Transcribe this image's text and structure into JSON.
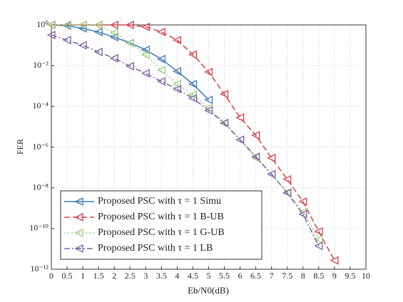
{
  "chart_data": {
    "type": "line",
    "y_label": "FER",
    "x_label": "Eb/N0(dB)",
    "log_y": true,
    "grid": true,
    "legend_position": "lower-left",
    "xlim": [
      0,
      10
    ],
    "xticks": [
      0,
      0.5,
      1,
      1.5,
      2,
      2.5,
      3,
      3.5,
      4,
      4.5,
      5,
      5.5,
      6,
      6.5,
      7,
      7.5,
      8,
      8.5,
      9,
      9.5,
      10
    ],
    "ylim": [
      1e-12,
      1
    ],
    "yticks": [
      {
        "value": 1,
        "label": "10⁰"
      },
      {
        "value": 0.01,
        "label": "10⁻²"
      },
      {
        "value": 0.0001,
        "label": "10⁻⁴"
      },
      {
        "value": 1e-06,
        "label": "10⁻⁶"
      },
      {
        "value": 1e-08,
        "label": "10⁻⁸"
      },
      {
        "value": 1e-10,
        "label": "10⁻¹⁰"
      },
      {
        "value": 1e-12,
        "label": "10⁻¹²"
      }
    ],
    "series": [
      {
        "name": "Proposed PSC with τ = 1 Simu",
        "color": "#3a78b5",
        "linestyle": "solid",
        "x": [
          0,
          0.5,
          1,
          1.5,
          2,
          2.5,
          3,
          3.5,
          4,
          4.5,
          5
        ],
        "values": [
          1,
          0.92,
          0.67,
          0.45,
          0.25,
          0.13,
          0.06,
          0.021,
          0.0053,
          0.00125,
          0.00021
        ]
      },
      {
        "name": "Proposed PSC with τ = 1 B-UB",
        "color": "#d7404a",
        "linestyle": "dashed",
        "x": [
          0,
          0.5,
          1,
          1.5,
          2,
          2.5,
          3,
          3.5,
          4,
          4.5,
          5,
          5.5,
          6,
          6.5,
          7,
          7.5,
          8,
          8.5,
          9
        ],
        "values": [
          1,
          1,
          1,
          1,
          1,
          1,
          0.8,
          0.45,
          0.18,
          0.035,
          0.0049,
          0.0004,
          2.8e-05,
          3.8e-06,
          2.9e-07,
          2.6e-08,
          2.1e-09,
          7.2e-11,
          2.7e-12
        ]
      },
      {
        "name": "Proposed PSC with τ = 1 G-UB",
        "color": "#9ad07a",
        "linestyle": "dotted",
        "x": [
          0,
          0.5,
          1,
          1.5,
          2,
          2.5,
          3,
          3.5,
          4,
          4.5,
          5,
          5.5,
          6,
          6.5,
          7,
          7.5,
          8,
          8.5
        ],
        "values": [
          1,
          1,
          1,
          1,
          0.41,
          0.13,
          0.034,
          0.006,
          0.00125,
          0.00037,
          8.2e-05,
          1.6e-05,
          2.3e-06,
          2.9e-07,
          4.7e-08,
          6e-09,
          6.5e-10,
          3e-11
        ]
      },
      {
        "name": "Proposed PSC with τ = 1 LB",
        "color": "#7b61a8",
        "linestyle": "dashdot",
        "x": [
          0,
          0.5,
          1,
          1.5,
          2,
          2.5,
          3,
          3.5,
          4,
          4.5,
          5,
          5.5,
          6,
          6.5,
          7,
          7.5,
          8,
          8.5
        ],
        "values": [
          0.32,
          0.18,
          0.1,
          0.047,
          0.023,
          0.0094,
          0.0042,
          0.0017,
          0.0007,
          0.00025,
          6.3e-05,
          1.5e-05,
          2.3e-06,
          3.4e-07,
          4.7e-08,
          5.6e-09,
          5e-10,
          1.4e-11
        ]
      }
    ]
  }
}
